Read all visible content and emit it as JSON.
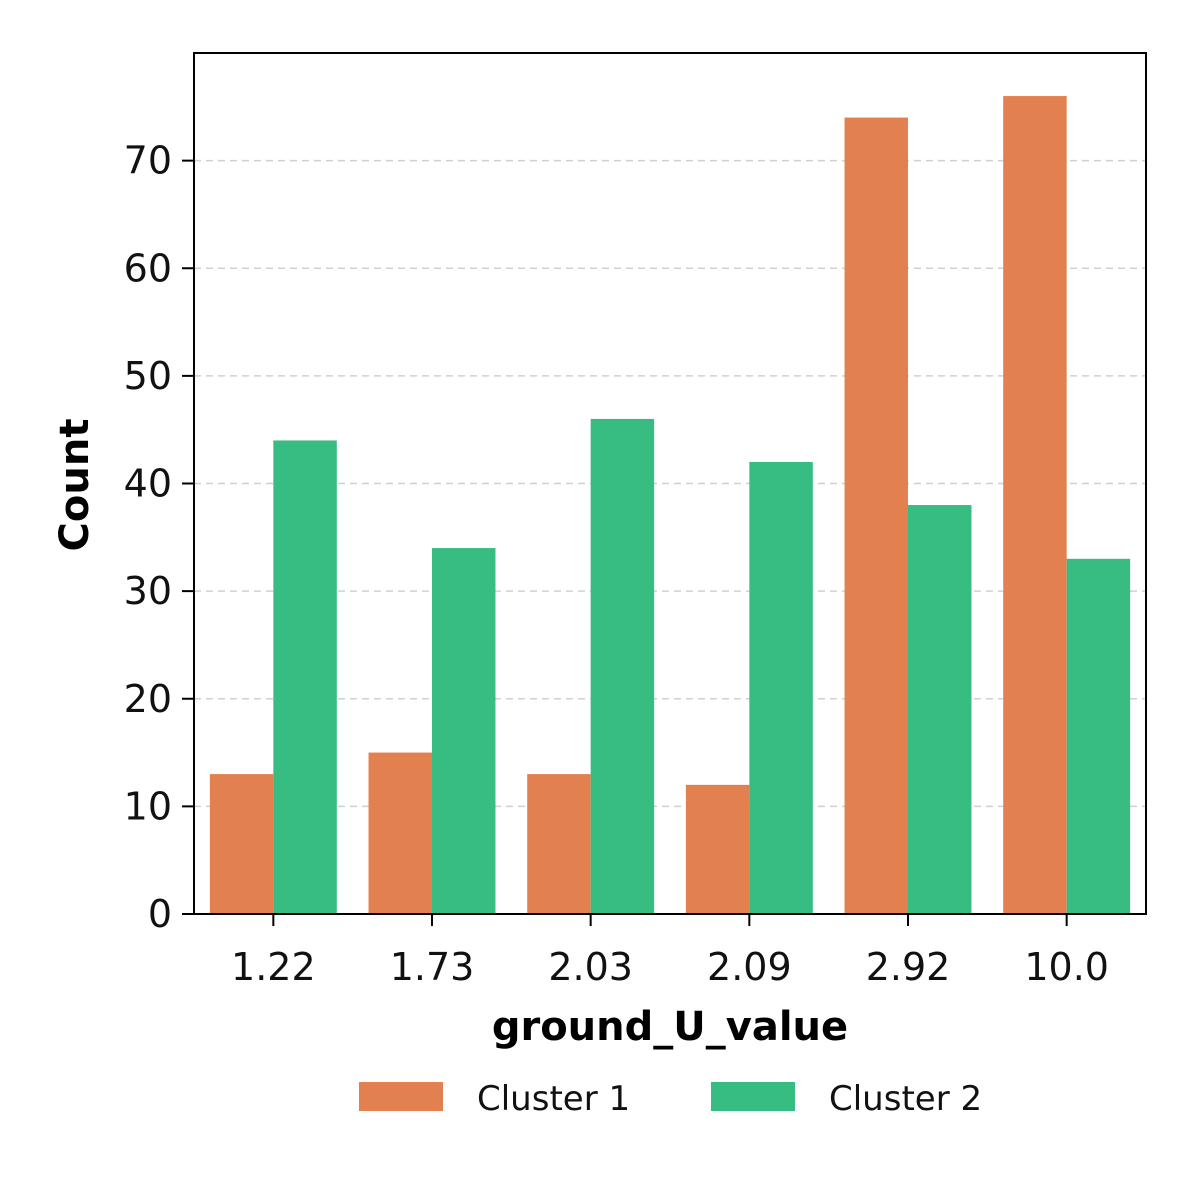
{
  "chart_data": {
    "type": "bar",
    "title": "",
    "xlabel": "ground_U_value",
    "ylabel": "Count",
    "categories": [
      "1.22",
      "1.73",
      "2.03",
      "2.09",
      "2.92",
      "10.0"
    ],
    "series": [
      {
        "name": "Cluster 1",
        "color": "#e2804f",
        "values": [
          13,
          15,
          13,
          12,
          74,
          76
        ]
      },
      {
        "name": "Cluster 2",
        "color": "#37bc82",
        "values": [
          44,
          34,
          46,
          42,
          38,
          33
        ]
      }
    ],
    "ylim": [
      0,
      80
    ],
    "yticks": [
      0,
      10,
      20,
      30,
      40,
      50,
      60,
      70
    ],
    "grid": "horizontal dashed",
    "legend_position": "bottom"
  }
}
